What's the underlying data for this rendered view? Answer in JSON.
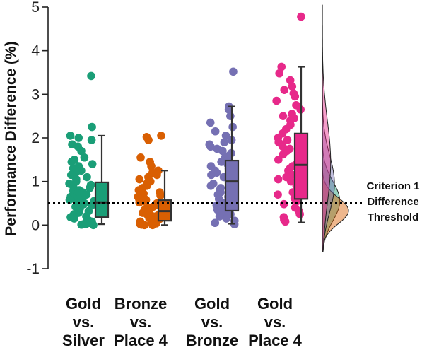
{
  "chart_data": {
    "type": "raincloud",
    "ylabel": "Performance Difference (%)",
    "ylim": [
      -1,
      5
    ],
    "yticks": [
      "-1",
      "0",
      "1",
      "2",
      "3",
      "4",
      "5"
    ],
    "grid": false,
    "reference_line": {
      "y": 0.5,
      "style": "dotted",
      "label": [
        "Criterion 1",
        "Difference",
        "Threshold"
      ]
    },
    "categories": [
      {
        "label": [
          "Gold",
          "vs.",
          "Silver"
        ],
        "color": "#1a9e77",
        "box": {
          "min": 0.02,
          "q1": 0.18,
          "median": 0.52,
          "q3": 0.98,
          "max": 2.05
        },
        "points": [
          3.42,
          2.25,
          2.05,
          2.0,
          1.95,
          1.85,
          1.8,
          1.7,
          1.55,
          1.5,
          1.45,
          1.4,
          1.35,
          1.3,
          1.25,
          1.2,
          1.15,
          1.1,
          1.05,
          1.0,
          0.95,
          0.92,
          0.88,
          0.85,
          0.8,
          0.78,
          0.75,
          0.72,
          0.7,
          0.68,
          0.65,
          0.62,
          0.6,
          0.58,
          0.55,
          0.52,
          0.5,
          0.48,
          0.45,
          0.42,
          0.4,
          0.38,
          0.35,
          0.32,
          0.3,
          0.28,
          0.25,
          0.22,
          0.2,
          0.18,
          0.15,
          0.12,
          0.1,
          0.08,
          0.06,
          0.05,
          0.03,
          0.02,
          0.01,
          0.0
        ]
      },
      {
        "label": [
          "Bronze",
          "vs.",
          "Place 4"
        ],
        "color": "#d95f02",
        "box": {
          "min": 0.0,
          "q1": 0.1,
          "median": 0.32,
          "q3": 0.57,
          "max": 1.25
        },
        "points": [
          2.05,
          2.02,
          1.95,
          1.55,
          1.45,
          1.35,
          1.25,
          1.2,
          1.15,
          1.1,
          1.05,
          1.0,
          0.95,
          0.9,
          0.85,
          0.8,
          0.75,
          0.72,
          0.68,
          0.65,
          0.6,
          0.58,
          0.55,
          0.52,
          0.5,
          0.48,
          0.45,
          0.42,
          0.4,
          0.38,
          0.35,
          0.33,
          0.3,
          0.28,
          0.26,
          0.24,
          0.22,
          0.2,
          0.18,
          0.16,
          0.14,
          0.12,
          0.1,
          0.08,
          0.06,
          0.05,
          0.04,
          0.03,
          0.02,
          0.01,
          0.0,
          0.0
        ]
      },
      {
        "label": [
          "Gold",
          "vs.",
          "Bronze"
        ],
        "color": "#7570b3",
        "box": {
          "min": 0.03,
          "q1": 0.33,
          "median": 1.0,
          "q3": 1.48,
          "max": 2.72
        },
        "points": [
          3.52,
          2.72,
          2.65,
          2.5,
          2.35,
          2.25,
          2.15,
          2.05,
          1.95,
          1.9,
          1.85,
          1.8,
          1.75,
          1.7,
          1.65,
          1.6,
          1.55,
          1.5,
          1.45,
          1.4,
          1.35,
          1.3,
          1.25,
          1.2,
          1.15,
          1.1,
          1.05,
          1.0,
          0.95,
          0.9,
          0.85,
          0.8,
          0.75,
          0.7,
          0.65,
          0.6,
          0.55,
          0.5,
          0.45,
          0.4,
          0.35,
          0.3,
          0.25,
          0.2,
          0.15,
          0.1,
          0.05,
          0.02
        ]
      },
      {
        "label": [
          "Gold",
          "vs.",
          "Place 4"
        ],
        "color": "#e7298a",
        "box": {
          "min": 0.06,
          "q1": 0.6,
          "median": 1.38,
          "q3": 2.1,
          "max": 3.63
        },
        "points": [
          4.78,
          3.63,
          3.48,
          3.32,
          3.18,
          3.1,
          3.02,
          2.95,
          2.85,
          2.75,
          2.65,
          2.55,
          2.5,
          2.45,
          2.4,
          2.3,
          2.2,
          2.1,
          2.0,
          1.95,
          1.9,
          1.85,
          1.8,
          1.75,
          1.7,
          1.62,
          1.55,
          1.5,
          1.45,
          1.4,
          1.35,
          1.3,
          1.25,
          1.2,
          1.15,
          1.1,
          1.05,
          1.0,
          0.95,
          0.9,
          0.82,
          0.75,
          0.7,
          0.62,
          0.55,
          0.48,
          0.4,
          0.32,
          0.25,
          0.18,
          0.12,
          0.08
        ]
      }
    ],
    "densities": [
      {
        "color": "#1a9e77",
        "mean": 0.55,
        "sd": 0.45
      },
      {
        "color": "#d95f02",
        "mean": 0.33,
        "sd": 0.3
      },
      {
        "color": "#7570b3",
        "mean": 0.95,
        "sd": 0.65
      },
      {
        "color": "#e7298a",
        "mean": 1.45,
        "sd": 0.95
      }
    ]
  }
}
